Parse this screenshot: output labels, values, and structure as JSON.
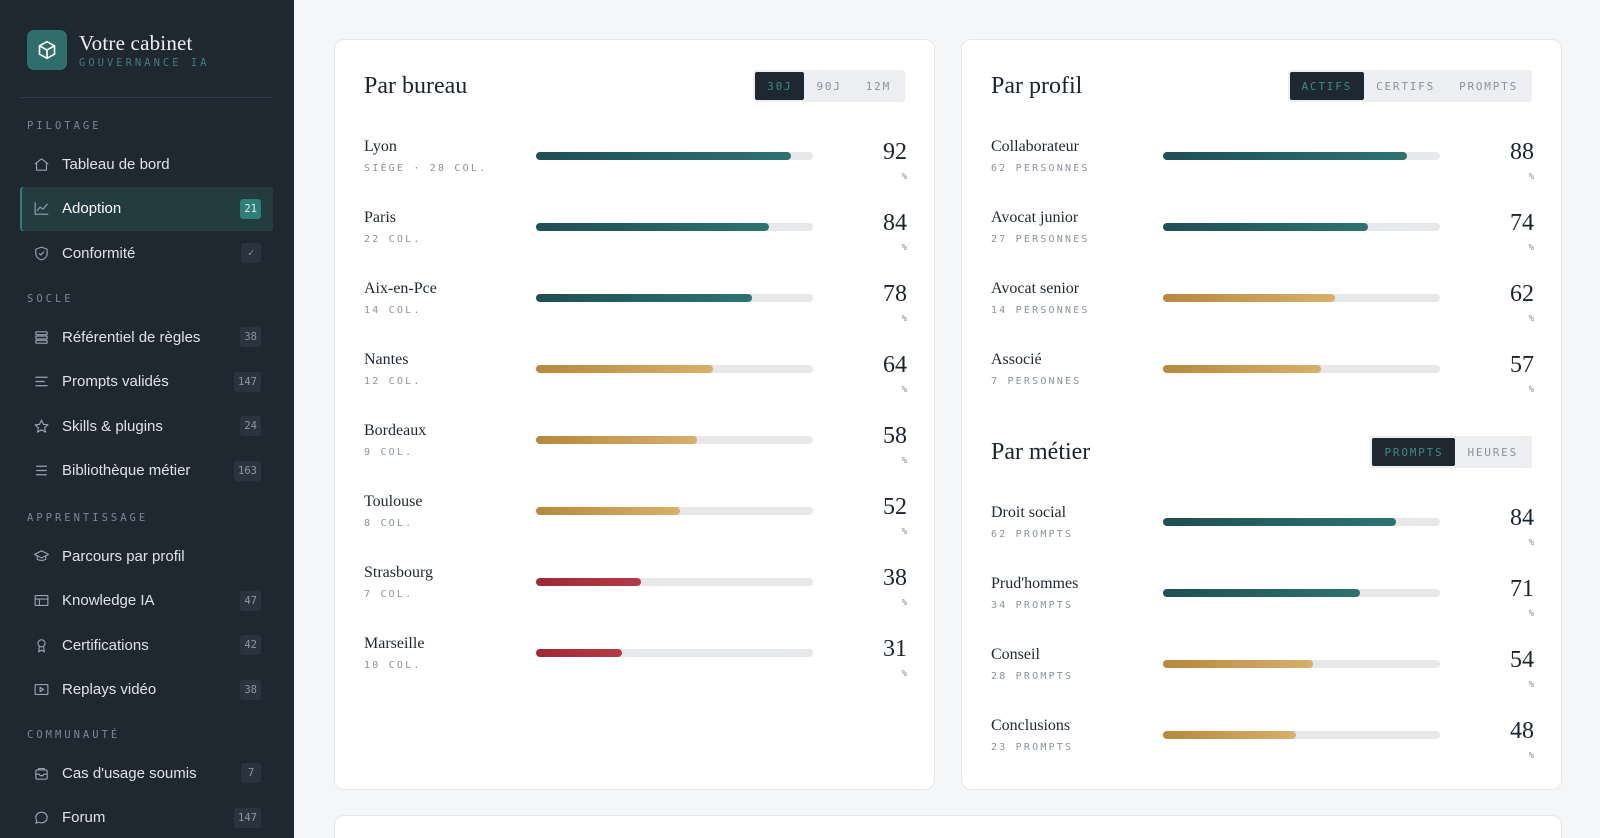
{
  "brand": {
    "title": "Votre cabinet",
    "subtitle": "GOUVERNANCE IA",
    "icon": "cube-icon"
  },
  "sidebar": {
    "sections": [
      {
        "label": "PILOTAGE",
        "items": [
          {
            "label": "Tableau de bord",
            "icon": "home-icon",
            "badge": ""
          },
          {
            "label": "Adoption",
            "icon": "chart-line-icon",
            "badge": "21",
            "active": true
          },
          {
            "label": "Conformité",
            "icon": "shield-icon",
            "badge": "✓"
          }
        ]
      },
      {
        "label": "SOCLE",
        "items": [
          {
            "label": "Référentiel de règles",
            "icon": "layers-icon",
            "badge": "38"
          },
          {
            "label": "Prompts validés",
            "icon": "text-lines-icon",
            "badge": "147"
          },
          {
            "label": "Skills & plugins",
            "icon": "star-icon",
            "badge": "24"
          },
          {
            "label": "Bibliothèque métier",
            "icon": "list-icon",
            "badge": "163"
          }
        ]
      },
      {
        "label": "APPRENTISSAGE",
        "items": [
          {
            "label": "Parcours par profil",
            "icon": "graduation-cap-icon",
            "badge": ""
          },
          {
            "label": "Knowledge IA",
            "icon": "table-icon",
            "badge": "47"
          },
          {
            "label": "Certifications",
            "icon": "award-icon",
            "badge": "42"
          },
          {
            "label": "Replays vidéo",
            "icon": "play-icon",
            "badge": "38"
          }
        ]
      },
      {
        "label": "COMMUNAUTÉ",
        "items": [
          {
            "label": "Cas d'usage soumis",
            "icon": "inbox-icon",
            "badge": "7"
          },
          {
            "label": "Forum",
            "icon": "chat-bubble-icon",
            "badge": "147"
          }
        ]
      }
    ]
  },
  "par_bureau": {
    "title": "Par bureau",
    "tabs": [
      {
        "label": "30J",
        "active": true
      },
      {
        "label": "90J"
      },
      {
        "label": "12M"
      }
    ],
    "rows": [
      {
        "name": "Lyon",
        "sub": "SIÈGE · 28 COL.",
        "value": 92,
        "unit": "%",
        "color": "teal"
      },
      {
        "name": "Paris",
        "sub": "22 COL.",
        "value": 84,
        "unit": "%",
        "color": "teal"
      },
      {
        "name": "Aix-en-Pce",
        "sub": "14 COL.",
        "value": 78,
        "unit": "%",
        "color": "teal"
      },
      {
        "name": "Nantes",
        "sub": "12 COL.",
        "value": 64,
        "unit": "%",
        "color": "gold"
      },
      {
        "name": "Bordeaux",
        "sub": "9 COL.",
        "value": 58,
        "unit": "%",
        "color": "gold"
      },
      {
        "name": "Toulouse",
        "sub": "8 COL.",
        "value": 52,
        "unit": "%",
        "color": "gold"
      },
      {
        "name": "Strasbourg",
        "sub": "7 COL.",
        "value": 38,
        "unit": "%",
        "color": "red"
      },
      {
        "name": "Marseille",
        "sub": "10 COL.",
        "value": 31,
        "unit": "%",
        "color": "red"
      }
    ]
  },
  "par_profil": {
    "title": "Par profil",
    "tabs": [
      {
        "label": "ACTIFS",
        "active": true
      },
      {
        "label": "CERTIFS"
      },
      {
        "label": "PROMPTS"
      }
    ],
    "rows": [
      {
        "name": "Collaborateur",
        "sub": "62 PERSONNES",
        "value": 88,
        "unit": "%",
        "color": "teal"
      },
      {
        "name": "Avocat junior",
        "sub": "27 PERSONNES",
        "value": 74,
        "unit": "%",
        "color": "teal"
      },
      {
        "name": "Avocat senior",
        "sub": "14 PERSONNES",
        "value": 62,
        "unit": "%",
        "color": "gold"
      },
      {
        "name": "Associé",
        "sub": "7 PERSONNES",
        "value": 57,
        "unit": "%",
        "color": "gold"
      }
    ]
  },
  "par_metier": {
    "title": "Par métier",
    "tabs": [
      {
        "label": "PROMPTS",
        "active": true
      },
      {
        "label": "HEURES"
      }
    ],
    "rows": [
      {
        "name": "Droit social",
        "sub": "62 PROMPTS",
        "value": 84,
        "unit": "%",
        "color": "teal"
      },
      {
        "name": "Prud'hommes",
        "sub": "34 PROMPTS",
        "value": 71,
        "unit": "%",
        "color": "teal"
      },
      {
        "name": "Conseil",
        "sub": "28 PROMPTS",
        "value": 54,
        "unit": "%",
        "color": "gold"
      },
      {
        "name": "Conclusions",
        "sub": "23 PROMPTS",
        "value": 48,
        "unit": "%",
        "color": "gold"
      }
    ]
  },
  "colors": {
    "sidebar_bg": "#1f2731",
    "accent_teal": "#2f7f77",
    "gold": "#c9a050",
    "red": "#a8303b"
  }
}
